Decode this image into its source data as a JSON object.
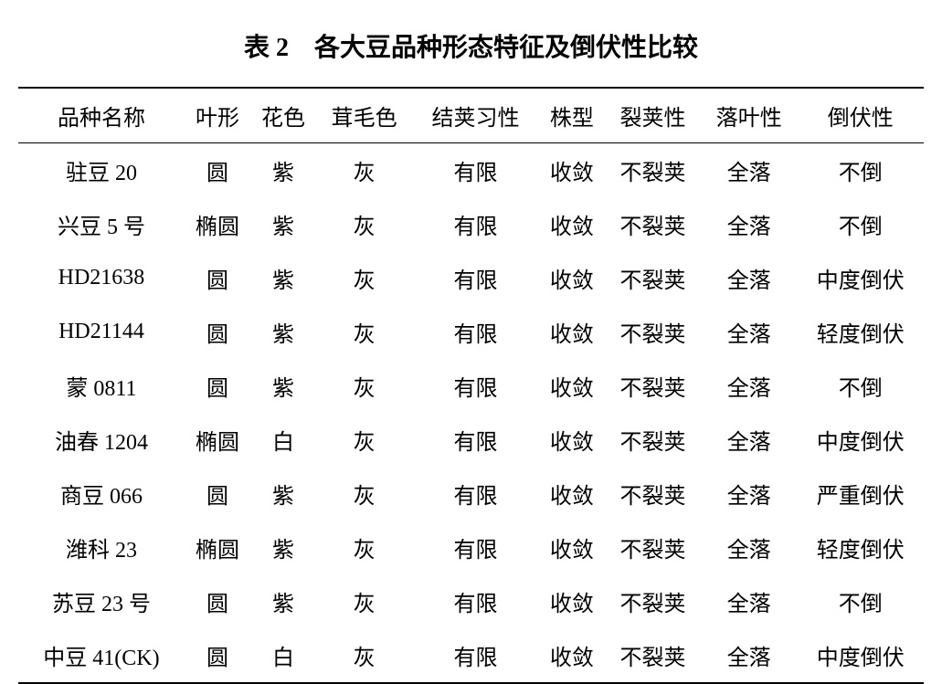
{
  "table": {
    "type": "table",
    "title": "表 2　各大豆品种形态特征及倒伏性比较",
    "title_fontsize": 28,
    "title_fontweight": "bold",
    "background_color": "#ffffff",
    "text_color": "#000000",
    "border_color": "#000000",
    "top_border_width": 2,
    "header_bottom_border_width": 1,
    "bottom_border_width": 2,
    "cell_fontsize": 24,
    "columns": [
      "品种名称",
      "叶形",
      "花色",
      "茸毛色",
      "结荚习性",
      "株型",
      "裂荚性",
      "落叶性",
      "倒伏性"
    ],
    "rows": [
      [
        "驻豆 20",
        "圆",
        "紫",
        "灰",
        "有限",
        "收敛",
        "不裂荚",
        "全落",
        "不倒"
      ],
      [
        "兴豆 5 号",
        "椭圆",
        "紫",
        "灰",
        "有限",
        "收敛",
        "不裂荚",
        "全落",
        "不倒"
      ],
      [
        "HD21638",
        "圆",
        "紫",
        "灰",
        "有限",
        "收敛",
        "不裂荚",
        "全落",
        "中度倒伏"
      ],
      [
        "HD21144",
        "圆",
        "紫",
        "灰",
        "有限",
        "收敛",
        "不裂荚",
        "全落",
        "轻度倒伏"
      ],
      [
        "蒙 0811",
        "圆",
        "紫",
        "灰",
        "有限",
        "收敛",
        "不裂荚",
        "全落",
        "不倒"
      ],
      [
        "油春 1204",
        "椭圆",
        "白",
        "灰",
        "有限",
        "收敛",
        "不裂荚",
        "全落",
        "中度倒伏"
      ],
      [
        "商豆 066",
        "圆",
        "紫",
        "灰",
        "有限",
        "收敛",
        "不裂荚",
        "全落",
        "严重倒伏"
      ],
      [
        "潍科 23",
        "椭圆",
        "紫",
        "灰",
        "有限",
        "收敛",
        "不裂荚",
        "全落",
        "轻度倒伏"
      ],
      [
        "苏豆 23 号",
        "圆",
        "紫",
        "灰",
        "有限",
        "收敛",
        "不裂荚",
        "全落",
        "不倒"
      ],
      [
        "中豆 41(CK)",
        "圆",
        "白",
        "灰",
        "有限",
        "收敛",
        "不裂荚",
        "全落",
        "中度倒伏"
      ]
    ]
  }
}
